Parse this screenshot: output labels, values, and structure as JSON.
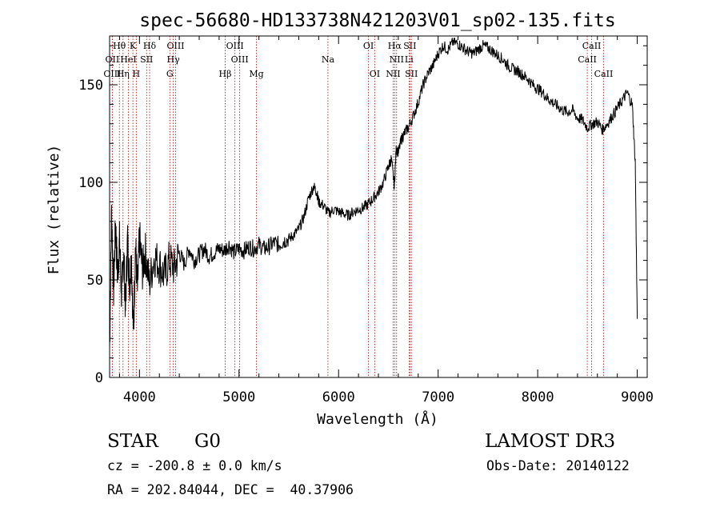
{
  "chart_data": {
    "type": "line",
    "title": "spec-56680-HD133738N421203V01_sp02-135.fits",
    "xlabel": "Wavelength (Å)",
    "ylabel": "Flux (relative)",
    "xlim": [
      3700,
      9100
    ],
    "ylim": [
      0,
      175
    ],
    "xticks": [
      4000,
      5000,
      6000,
      7000,
      8000,
      9000
    ],
    "yticks": [
      0,
      50,
      100,
      150
    ],
    "series": [
      {
        "name": "flux",
        "x": [
          3700,
          3720,
          3740,
          3760,
          3780,
          3800,
          3820,
          3840,
          3860,
          3880,
          3900,
          3920,
          3940,
          3960,
          3980,
          4000,
          4030,
          4060,
          4100,
          4150,
          4200,
          4250,
          4300,
          4350,
          4400,
          4450,
          4500,
          4550,
          4600,
          4650,
          4700,
          4750,
          4800,
          4850,
          4900,
          4950,
          5000,
          5050,
          5100,
          5150,
          5200,
          5250,
          5300,
          5350,
          5400,
          5450,
          5500,
          5550,
          5600,
          5650,
          5700,
          5750,
          5780,
          5800,
          5850,
          5900,
          5950,
          6000,
          6050,
          6100,
          6150,
          6200,
          6250,
          6300,
          6350,
          6400,
          6450,
          6500,
          6530,
          6560,
          6580,
          6600,
          6630,
          6660,
          6700,
          6750,
          6800,
          6850,
          6900,
          6950,
          7000,
          7050,
          7100,
          7150,
          7200,
          7250,
          7300,
          7350,
          7400,
          7450,
          7500,
          7550,
          7600,
          7650,
          7700,
          7750,
          7800,
          7850,
          7900,
          7950,
          8000,
          8050,
          8100,
          8150,
          8200,
          8250,
          8300,
          8350,
          8400,
          8450,
          8500,
          8550,
          8600,
          8650,
          8700,
          8750,
          8800,
          8850,
          8900,
          8950,
          8980,
          9000
        ],
        "values": [
          15,
          85,
          45,
          78,
          52,
          70,
          42,
          65,
          35,
          72,
          48,
          60,
          22,
          68,
          45,
          72,
          55,
          64,
          48,
          62,
          58,
          52,
          60,
          56,
          64,
          58,
          66,
          60,
          63,
          66,
          62,
          64,
          66,
          65,
          68,
          64,
          66,
          65,
          67,
          66,
          68,
          66,
          67,
          69,
          68,
          70,
          71,
          73,
          76,
          82,
          92,
          98,
          95,
          90,
          88,
          84,
          86,
          85,
          84,
          83,
          85,
          86,
          87,
          89,
          92,
          95,
          100,
          108,
          112,
          98,
          118,
          115,
          122,
          125,
          128,
          134,
          141,
          150,
          156,
          160,
          166,
          170,
          168,
          172,
          171,
          169,
          167,
          166,
          168,
          170,
          169,
          167,
          165,
          163,
          160,
          158,
          157,
          155,
          153,
          150,
          148,
          146,
          143,
          141,
          139,
          137,
          136,
          137,
          133,
          132,
          128,
          130,
          131,
          127,
          130,
          134,
          138,
          142,
          146,
          140,
          110,
          30
        ]
      }
    ],
    "lines": [
      {
        "label": "Hθ",
        "x": 3798,
        "row": 1
      },
      {
        "label": "K",
        "x": 3934,
        "row": 1
      },
      {
        "label": "Hδ",
        "x": 4102,
        "row": 1
      },
      {
        "label": "OIII",
        "x": 4363,
        "row": 1
      },
      {
        "label": "OIII",
        "x": 4959,
        "row": 1
      },
      {
        "label": "OI",
        "x": 6300,
        "row": 1
      },
      {
        "label": "Hα",
        "x": 6563,
        "row": 1
      },
      {
        "label": "SII",
        "x": 6716,
        "row": 1
      },
      {
        "label": "CaII",
        "x": 8542,
        "row": 1
      },
      {
        "label": "OII",
        "x": 3727,
        "row": 2
      },
      {
        "label": "HeI",
        "x": 3889,
        "row": 2
      },
      {
        "label": "SII",
        "x": 4072,
        "row": 2
      },
      {
        "label": "Hγ",
        "x": 4340,
        "row": 2
      },
      {
        "label": "OIII",
        "x": 5007,
        "row": 2
      },
      {
        "label": "NII",
        "x": 6583,
        "row": 2
      },
      {
        "label": "Li",
        "x": 6708,
        "row": 2
      },
      {
        "label": "CaII",
        "x": 8498,
        "row": 2
      },
      {
        "label": "OIII",
        "x": 3727,
        "row": 3
      },
      {
        "label": "Hη",
        "x": 3835,
        "row": 3
      },
      {
        "label": "H",
        "x": 3968,
        "row": 3
      },
      {
        "label": "G",
        "x": 4305,
        "row": 3
      },
      {
        "label": "Hβ",
        "x": 4861,
        "row": 3
      },
      {
        "label": "Mg",
        "x": 5175,
        "row": 3
      },
      {
        "label": "Na",
        "x": 5893,
        "row": 2
      },
      {
        "label": "OI",
        "x": 6363,
        "row": 3
      },
      {
        "label": "NII",
        "x": 6548,
        "row": 3
      },
      {
        "label": "SII",
        "x": 6731,
        "row": 3
      },
      {
        "label": "CaII",
        "x": 8662,
        "row": 3
      }
    ]
  },
  "footer": {
    "object_class": "STAR",
    "subclass": "G0",
    "survey": "LAMOST DR3",
    "redshift": "cz = -200.8 ± 0.0 km/s",
    "obs_date": "Obs-Date: 20140122",
    "coords": "RA = 202.84044, DEC =  40.37906"
  }
}
